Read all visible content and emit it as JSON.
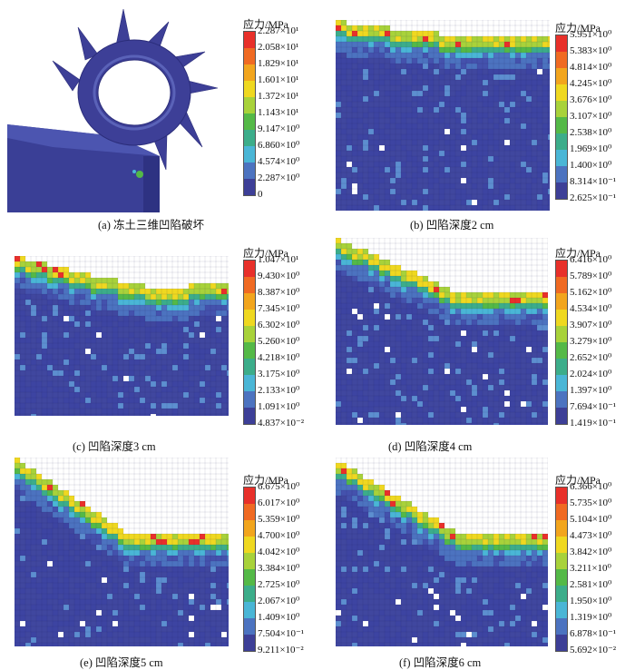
{
  "colormap": [
    "#e8302a",
    "#f06a22",
    "#f2a51d",
    "#efd820",
    "#a8d23a",
    "#54b947",
    "#3cad8a",
    "#4ab6d6",
    "#4c73c0",
    "#3d3f97"
  ],
  "figure": {
    "panels": [
      {
        "id": "a",
        "caption": "(a) 冻土三维凹陷破坏",
        "legend": {
          "title": "应力/MPa",
          "ticks": [
            "2.287×10¹",
            "2.058×10¹",
            "1.829×10¹",
            "1.601×10¹",
            "1.372×10¹",
            "1.143×10¹",
            "9.147×10⁰",
            "6.860×10⁰",
            "4.574×10⁰",
            "2.287×10⁰",
            "0"
          ]
        }
      },
      {
        "id": "b",
        "caption": "(b) 凹陷深度2 cm",
        "legend": {
          "title": "应力/MPa",
          "ticks": [
            "5.951×10⁰",
            "5.383×10⁰",
            "4.814×10⁰",
            "4.245×10⁰",
            "3.676×10⁰",
            "3.107×10⁰",
            "2.538×10⁰",
            "1.969×10⁰",
            "1.400×10⁰",
            "8.314×10⁻¹",
            "2.625×10⁻¹"
          ]
        }
      },
      {
        "id": "c",
        "caption": "(c) 凹陷深度3 cm",
        "legend": {
          "title": "应力/MPa",
          "ticks": [
            "1.047×10¹",
            "9.430×10⁰",
            "8.387×10⁰",
            "7.345×10⁰",
            "6.302×10⁰",
            "5.260×10⁰",
            "4.218×10⁰",
            "3.175×10⁰",
            "2.133×10⁰",
            "1.091×10⁰",
            "4.837×10⁻²"
          ]
        }
      },
      {
        "id": "d",
        "caption": "(d) 凹陷深度4 cm",
        "legend": {
          "title": "应力/MPa",
          "ticks": [
            "6.416×10⁰",
            "5.789×10⁰",
            "5.162×10⁰",
            "4.534×10⁰",
            "3.907×10⁰",
            "3.279×10⁰",
            "2.652×10⁰",
            "2.024×10⁰",
            "1.397×10⁰",
            "7.694×10⁻¹",
            "1.419×10⁻¹"
          ]
        }
      },
      {
        "id": "e",
        "caption": "(e) 凹陷深度5 cm",
        "legend": {
          "title": "应力/MPa",
          "ticks": [
            "6.675×10⁰",
            "6.017×10⁰",
            "5.359×10⁰",
            "4.700×10⁰",
            "4.042×10⁰",
            "3.384×10⁰",
            "2.725×10⁰",
            "2.067×10⁰",
            "1.409×10⁰",
            "7.504×10⁻¹",
            "9.211×10⁻²"
          ]
        }
      },
      {
        "id": "f",
        "caption": "(f) 凹陷深度6 cm",
        "legend": {
          "title": "应力/MPa",
          "ticks": [
            "6.366×10⁰",
            "5.735×10⁰",
            "5.104×10⁰",
            "4.473×10⁰",
            "3.842×10⁰",
            "3.211×10⁰",
            "2.581×10⁰",
            "1.950×10⁰",
            "1.319×10⁰",
            "6.878×10⁻¹",
            "5.692×10⁻²"
          ]
        }
      }
    ]
  }
}
